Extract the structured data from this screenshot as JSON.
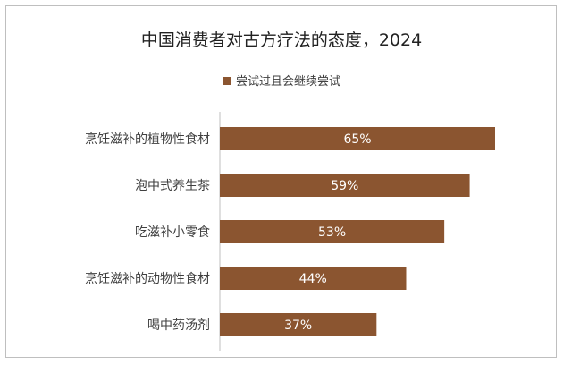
{
  "chart_data": {
    "type": "bar",
    "orientation": "horizontal",
    "title": "中国消费者对古方疗法的态度，2024",
    "categories": [
      "烹饪滋补的植物性食材",
      "泡中式养生茶",
      "吃滋补小零食",
      "烹饪滋补的动物性食材",
      "喝中药汤剂"
    ],
    "series": [
      {
        "name": "尝试过且会继续尝试",
        "values": [
          65,
          59,
          53,
          44,
          37
        ]
      }
    ],
    "data_labels": [
      "65%",
      "59%",
      "53%",
      "44%",
      "37%"
    ],
    "value_unit": "%",
    "xlim": [
      0,
      65
    ],
    "grid": false,
    "legend_position": "top",
    "bar_color": "#8b5530",
    "label_color": "#ffffff"
  }
}
